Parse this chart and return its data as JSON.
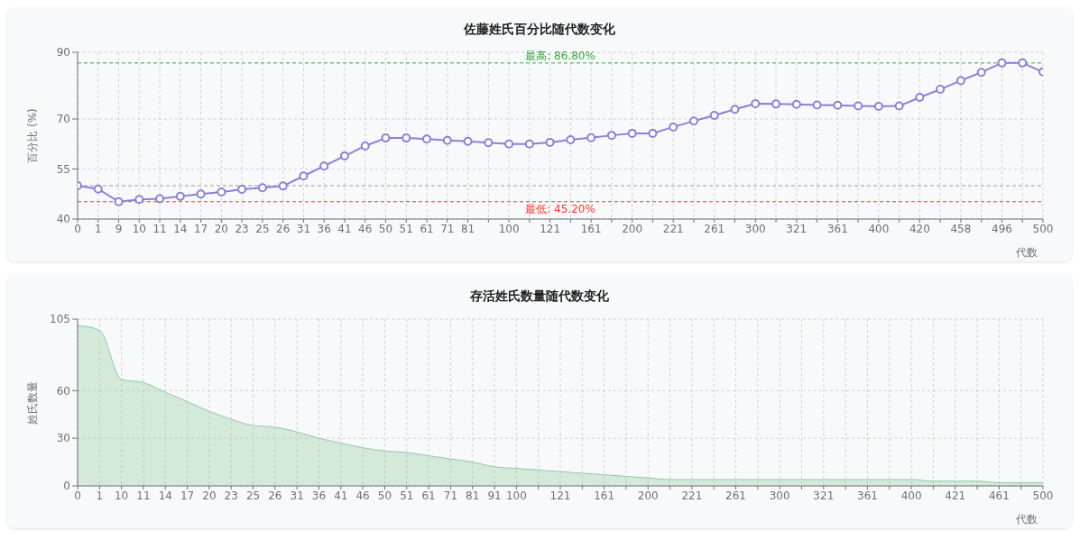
{
  "chart_data": [
    {
      "type": "line",
      "title": "佐藤姓氏百分比随代数变化",
      "xlabel": "代数",
      "ylabel": "百分比 (%)",
      "categories": [
        "0",
        "1",
        "9",
        "10",
        "11",
        "14",
        "17",
        "20",
        "23",
        "25",
        "26",
        "31",
        "36",
        "41",
        "46",
        "50",
        "51",
        "61",
        "71",
        "81",
        null,
        "100",
        null,
        "121",
        null,
        "161",
        null,
        "200",
        null,
        "221",
        null,
        "261",
        null,
        "300",
        null,
        "321",
        null,
        "361",
        null,
        "400",
        null,
        "420",
        null,
        "458",
        null,
        "496",
        null,
        "500"
      ],
      "series": [
        {
          "color": "#8b80d9",
          "values": [
            50.0,
            49.0,
            45.2,
            45.9,
            46.1,
            46.8,
            47.5,
            48.1,
            48.9,
            49.4,
            49.9,
            52.9,
            55.9,
            58.9,
            61.9,
            64.3,
            64.3,
            64.0,
            63.6,
            63.3,
            62.9,
            62.5,
            62.5,
            63.0,
            63.8,
            64.4,
            65.1,
            65.7,
            65.7,
            67.6,
            69.4,
            71.1,
            72.9,
            74.6,
            74.5,
            74.4,
            74.2,
            74.1,
            73.9,
            73.8,
            73.9,
            76.5,
            78.9,
            81.5,
            84.0,
            86.8,
            86.8,
            84.1
          ]
        }
      ],
      "ylim": [
        40,
        90
      ],
      "yticks": [
        40,
        55,
        70,
        90
      ],
      "grid": true,
      "marker": "circle",
      "line_style": "solid",
      "ref_lines": [
        {
          "axis": "y",
          "value": 86.8,
          "label": "最高: 86.80%",
          "color": "#3aa53a",
          "line_style": "dashed"
        },
        {
          "axis": "y",
          "value": 45.2,
          "label": "最低: 45.20%",
          "color": "#ff3333",
          "line_style": "dashed"
        },
        {
          "axis": "y",
          "value": 50,
          "color": "#999999",
          "line_style": "dashed"
        }
      ]
    },
    {
      "type": "area",
      "title": "存活姓氏数量随代数变化",
      "xlabel": "代数",
      "ylabel": "姓氏数量",
      "categories": [
        "0",
        "1",
        "10",
        "11",
        "14",
        "17",
        "20",
        "23",
        "25",
        "26",
        "31",
        "36",
        "41",
        "46",
        "50",
        "51",
        "61",
        "71",
        "81",
        "91",
        "100",
        null,
        "121",
        null,
        "161",
        null,
        "200",
        null,
        "221",
        null,
        "261",
        null,
        "300",
        null,
        "321",
        null,
        "361",
        null,
        "400",
        null,
        "421",
        null,
        "461",
        null,
        "500"
      ],
      "series": [
        {
          "color": "#91cc9f",
          "values": [
            101,
            98,
            67,
            65,
            59,
            53,
            47,
            42,
            38,
            37,
            34,
            30,
            27,
            24,
            22,
            21,
            19,
            17,
            15,
            12,
            11,
            10,
            9,
            8,
            7,
            6,
            5,
            4,
            4,
            4,
            4,
            4,
            4,
            4,
            4,
            4,
            4,
            4,
            4,
            3,
            3,
            3,
            2,
            2,
            2
          ]
        }
      ],
      "ylim": [
        0,
        105
      ],
      "yticks": [
        0,
        30,
        60,
        105
      ],
      "grid": true,
      "marker": "none"
    }
  ]
}
